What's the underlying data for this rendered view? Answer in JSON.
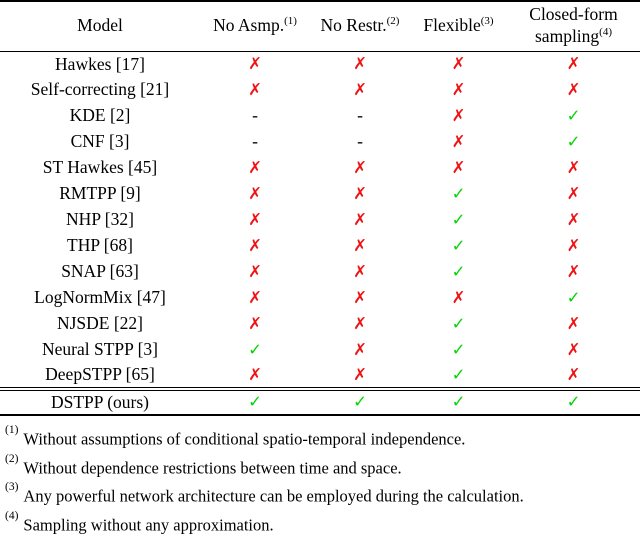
{
  "table": {
    "header": {
      "model": "Model",
      "cols": [
        {
          "label": "No Asmp.",
          "sup": "(1)"
        },
        {
          "label": "No Restr.",
          "sup": "(2)"
        },
        {
          "label": "Flexible",
          "sup": "(3)"
        },
        {
          "label": "Closed-form sampling",
          "sup": "(4)"
        }
      ]
    },
    "rows": [
      {
        "model": "Hawkes [17]",
        "marks": [
          "cross",
          "cross",
          "cross",
          "cross"
        ]
      },
      {
        "model": "Self-correcting [21]",
        "marks": [
          "cross",
          "cross",
          "cross",
          "cross"
        ]
      },
      {
        "model": "KDE [2]",
        "marks": [
          "dash",
          "dash",
          "cross",
          "check"
        ]
      },
      {
        "model": "CNF [3]",
        "marks": [
          "dash",
          "dash",
          "cross",
          "check"
        ]
      },
      {
        "model": "ST Hawkes [45]",
        "marks": [
          "cross",
          "cross",
          "cross",
          "cross"
        ]
      },
      {
        "model": "RMTPP [9]",
        "marks": [
          "cross",
          "cross",
          "check",
          "cross"
        ]
      },
      {
        "model": "NHP [32]",
        "marks": [
          "cross",
          "cross",
          "check",
          "cross"
        ]
      },
      {
        "model": "THP [68]",
        "marks": [
          "cross",
          "cross",
          "check",
          "cross"
        ]
      },
      {
        "model": "SNAP [63]",
        "marks": [
          "cross",
          "cross",
          "check",
          "cross"
        ]
      },
      {
        "model": "LogNormMix [47]",
        "marks": [
          "cross",
          "cross",
          "cross",
          "check"
        ]
      },
      {
        "model": "NJSDE [22]",
        "marks": [
          "cross",
          "cross",
          "check",
          "cross"
        ]
      },
      {
        "model": "Neural STPP [3]",
        "marks": [
          "check",
          "cross",
          "check",
          "cross"
        ]
      },
      {
        "model": "DeepSTPP [65]",
        "marks": [
          "cross",
          "cross",
          "check",
          "cross"
        ]
      }
    ],
    "final_row": {
      "model": "DSTPP (ours)",
      "marks": [
        "check",
        "check",
        "check",
        "check"
      ]
    }
  },
  "mark_glyphs": {
    "cross": "✗",
    "check": "✓",
    "dash": "-"
  },
  "colors": {
    "cross": "#ee1414",
    "check": "#00d600"
  },
  "footnotes": [
    {
      "sup": "(1)",
      "text": "Without assumptions of conditional spatio-temporal independence."
    },
    {
      "sup": "(2)",
      "text": "Without dependence restrictions between time and space."
    },
    {
      "sup": "(3)",
      "text": "Any powerful network architecture can be employed during the calculation."
    },
    {
      "sup": "(4)",
      "text": "Sampling without any approximation."
    }
  ]
}
